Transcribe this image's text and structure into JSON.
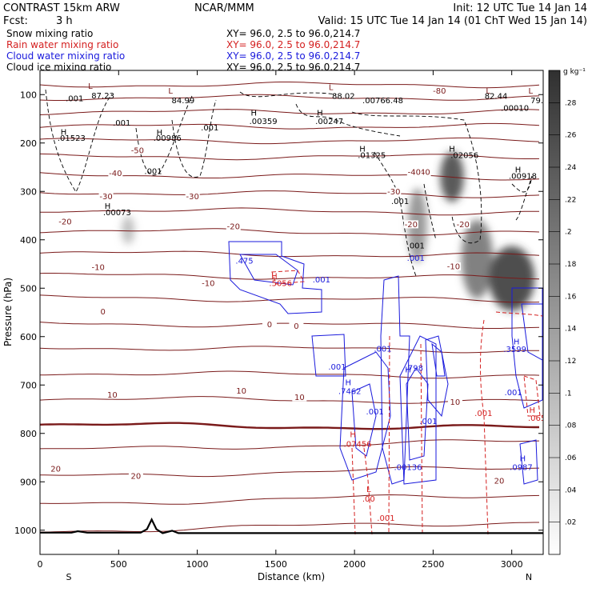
{
  "header": {
    "title_left": "CONTRAST 15km ARW",
    "title_center": "NCAR/MMM",
    "init": "Init: 12 UTC Tue 14 Jan 14",
    "fcst_label": "Fcst:",
    "fcst_value": "3 h",
    "valid": "Valid: 15 UTC Tue 14 Jan 14 (01 ChT Wed 15 Jan 14)"
  },
  "fields": [
    {
      "name": "Snow mixing ratio",
      "xy": "XY=  96.0,  2.5 to  96.0,214.7",
      "color": "#000000"
    },
    {
      "name": "Rain water mixing ratio",
      "xy": "XY=  96.0,  2.5 to  96.0,214.7",
      "color": "#d42020"
    },
    {
      "name": "Cloud water mixing ratio",
      "xy": "XY=  96.0,  2.5 to  96.0,214.7",
      "color": "#1a1adc"
    },
    {
      "name": "Cloud ice mixing ratio",
      "xy": "XY=  96.0,  2.5 to  96.0,214.7",
      "color": "#000000"
    }
  ],
  "chart_data": {
    "type": "heatmap",
    "xlabel": "Distance (km)",
    "ylabel": "Pressure (hPa)",
    "xlim": [
      0,
      3200
    ],
    "ylim": [
      1050,
      50
    ],
    "x_ticks": [
      0,
      500,
      1000,
      1500,
      2000,
      2500,
      3000
    ],
    "y_ticks": [
      100,
      200,
      300,
      400,
      500,
      600,
      700,
      800,
      900,
      1000
    ],
    "x_end_labels": {
      "left": "S",
      "right": "N"
    },
    "colorbar": {
      "unit": "g kg⁻¹",
      "ticks": [
        ".02",
        ".04",
        ".06",
        ".08",
        ".1",
        ".12",
        ".14",
        ".16",
        ".18",
        ".2",
        ".22",
        ".24",
        ".26",
        ".28"
      ],
      "range": [
        0,
        0.3
      ]
    },
    "shading_field": "Snow mixing ratio",
    "snow_blobs": [
      {
        "x": 560,
        "p": 380,
        "w": 40,
        "h": 45,
        "v": 0.1
      },
      {
        "x": 2400,
        "p": 370,
        "w": 80,
        "h": 140,
        "v": 0.16
      },
      {
        "x": 2620,
        "p": 270,
        "w": 110,
        "h": 90,
        "v": 0.26
      },
      {
        "x": 2780,
        "p": 440,
        "w": 160,
        "h": 150,
        "v": 0.2
      },
      {
        "x": 3000,
        "p": 480,
        "w": 250,
        "h": 120,
        "v": 0.28
      }
    ],
    "isotherm_labels": [
      {
        "t": "-80",
        "x": 2540,
        "p": 92
      },
      {
        "t": "-50",
        "x": 620,
        "p": 215
      },
      {
        "t": "-40",
        "x": 480,
        "p": 262
      },
      {
        "t": "-40",
        "x": 2440,
        "p": 260
      },
      {
        "t": "-40",
        "x": 2380,
        "p": 260
      },
      {
        "t": "-30",
        "x": 420,
        "p": 310
      },
      {
        "t": "-30",
        "x": 970,
        "p": 310
      },
      {
        "t": "-30",
        "x": 2250,
        "p": 300
      },
      {
        "t": "-20",
        "x": 160,
        "p": 362
      },
      {
        "t": "-20",
        "x": 1230,
        "p": 372
      },
      {
        "t": "-20",
        "x": 2360,
        "p": 368
      },
      {
        "t": "-20",
        "x": 2690,
        "p": 368
      },
      {
        "t": "-10",
        "x": 370,
        "p": 457
      },
      {
        "t": "-10",
        "x": 1070,
        "p": 490
      },
      {
        "t": "-10",
        "x": 2630,
        "p": 455
      },
      {
        "t": "0",
        "x": 400,
        "p": 548
      },
      {
        "t": "0",
        "x": 1460,
        "p": 575
      },
      {
        "t": "0",
        "x": 1630,
        "p": 578
      },
      {
        "t": "10",
        "x": 460,
        "p": 720
      },
      {
        "t": "10",
        "x": 1280,
        "p": 712
      },
      {
        "t": "10",
        "x": 1650,
        "p": 725
      },
      {
        "t": "10",
        "x": 2640,
        "p": 735
      },
      {
        "t": "20",
        "x": 100,
        "p": 873
      },
      {
        "t": "20",
        "x": 610,
        "p": 888
      },
      {
        "t": "20",
        "x": 2920,
        "p": 898
      }
    ],
    "extrema": [
      {
        "kind": "L",
        "x": 320,
        "p": 82,
        "color": "#7a1a1a"
      },
      {
        "kind": "L",
        "x": 830,
        "p": 92,
        "color": "#7a1a1a"
      },
      {
        "kind": "L",
        "x": 1850,
        "p": 85,
        "color": "#7a1a1a"
      },
      {
        "kind": "L",
        "x": 2850,
        "p": 92,
        "color": "#7a1a1a"
      },
      {
        "kind": "L",
        "x": 3120,
        "p": 92,
        "color": "#7a1a1a"
      },
      {
        "kind": "H",
        "x": 150,
        "p": 177,
        "color": "#000000"
      },
      {
        "kind": "H",
        "x": 760,
        "p": 178,
        "color": "#000000"
      },
      {
        "kind": "H",
        "x": 1360,
        "p": 138,
        "color": "#000000"
      },
      {
        "kind": "H",
        "x": 1780,
        "p": 138,
        "color": "#000000"
      },
      {
        "kind": "H",
        "x": 2050,
        "p": 212,
        "color": "#000000"
      },
      {
        "kind": "H",
        "x": 2620,
        "p": 212,
        "color": "#000000"
      },
      {
        "kind": "H",
        "x": 3040,
        "p": 255,
        "color": "#000000"
      },
      {
        "kind": "H",
        "x": 430,
        "p": 330,
        "color": "#000000"
      },
      {
        "kind": "H",
        "x": 1490,
        "p": 475,
        "color": "#d42020"
      },
      {
        "kind": "H",
        "x": 1960,
        "p": 695,
        "color": "#1a1adc"
      },
      {
        "kind": "H",
        "x": 2340,
        "p": 668,
        "color": "#1a1adc"
      },
      {
        "kind": "H",
        "x": 3030,
        "p": 610,
        "color": "#1a1adc"
      },
      {
        "kind": "H",
        "x": 3070,
        "p": 852,
        "color": "#1a1adc"
      },
      {
        "kind": "H",
        "x": 1990,
        "p": 802,
        "color": "#d42020"
      },
      {
        "kind": "H",
        "x": 3130,
        "p": 752,
        "color": "#d42020"
      },
      {
        "kind": "L",
        "x": 2090,
        "p": 915,
        "color": "#d42020"
      }
    ],
    "value_labels": [
      {
        "t": ".001",
        "x": 220,
        "p": 108,
        "color": "#000000"
      },
      {
        "t": "87.23",
        "x": 400,
        "p": 102,
        "color": "#000000"
      },
      {
        "t": "84.99",
        "x": 910,
        "p": 112,
        "color": "#000000"
      },
      {
        "t": "88.02",
        "x": 1930,
        "p": 103,
        "color": "#000000"
      },
      {
        "t": ".00766.48",
        "x": 2180,
        "p": 112,
        "color": "#000000"
      },
      {
        "t": "82.44",
        "x": 2900,
        "p": 103,
        "color": "#000000"
      },
      {
        "t": "79.",
        "x": 3160,
        "p": 112,
        "color": "#000000"
      },
      {
        "t": ".00010",
        "x": 3020,
        "p": 128,
        "color": "#000000"
      },
      {
        "t": ".001",
        "x": 520,
        "p": 158,
        "color": "#000000"
      },
      {
        "t": ".00359",
        "x": 1420,
        "p": 155,
        "color": "#000000"
      },
      {
        "t": ".00247",
        "x": 1840,
        "p": 155,
        "color": "#000000"
      },
      {
        "t": ".001",
        "x": 1080,
        "p": 168,
        "color": "#000000"
      },
      {
        "t": ".01523",
        "x": 200,
        "p": 190,
        "color": "#000000"
      },
      {
        "t": ".00986",
        "x": 810,
        "p": 190,
        "color": "#000000"
      },
      {
        "t": ".01325",
        "x": 2110,
        "p": 225,
        "color": "#000000"
      },
      {
        "t": ".02056",
        "x": 2700,
        "p": 225,
        "color": "#000000"
      },
      {
        "t": ".001",
        "x": 720,
        "p": 258,
        "color": "#000000"
      },
      {
        "t": ".00918",
        "x": 3070,
        "p": 268,
        "color": "#000000"
      },
      {
        "t": ".001",
        "x": 2290,
        "p": 320,
        "color": "#000000"
      },
      {
        "t": ".00073",
        "x": 490,
        "p": 343,
        "color": "#000000"
      },
      {
        "t": ".001",
        "x": 2390,
        "p": 412,
        "color": "#000000"
      },
      {
        "t": ".475",
        "x": 1300,
        "p": 443,
        "color": "#1a1adc"
      },
      {
        "t": ".001",
        "x": 2390,
        "p": 438,
        "color": "#1a1adc"
      },
      {
        "t": ".5056",
        "x": 1530,
        "p": 490,
        "color": "#d42020"
      },
      {
        "t": ".001",
        "x": 1790,
        "p": 482,
        "color": "#1a1adc"
      },
      {
        "t": ".001",
        "x": 2180,
        "p": 625,
        "color": "#1a1adc"
      },
      {
        "t": ".001",
        "x": 1890,
        "p": 662,
        "color": "#1a1adc"
      },
      {
        "t": ".798",
        "x": 2380,
        "p": 665,
        "color": "#1a1adc"
      },
      {
        "t": ".3599",
        "x": 3020,
        "p": 626,
        "color": "#1a1adc"
      },
      {
        "t": ".7462",
        "x": 1970,
        "p": 713,
        "color": "#1a1adc"
      },
      {
        "t": ".001",
        "x": 3010,
        "p": 715,
        "color": "#1a1adc"
      },
      {
        "t": ".001",
        "x": 2130,
        "p": 755,
        "color": "#1a1adc"
      },
      {
        "t": ".001",
        "x": 2470,
        "p": 775,
        "color": "#1a1adc"
      },
      {
        "t": ".001",
        "x": 2820,
        "p": 758,
        "color": "#d42020"
      },
      {
        "t": ".065",
        "x": 3160,
        "p": 768,
        "color": "#d42020"
      },
      {
        "t": ".07456",
        "x": 2020,
        "p": 822,
        "color": "#d42020"
      },
      {
        "t": ".00136",
        "x": 2340,
        "p": 870,
        "color": "#1a1adc"
      },
      {
        "t": ".0987",
        "x": 3060,
        "p": 870,
        "color": "#1a1adc"
      },
      {
        "t": ".00",
        "x": 2090,
        "p": 935,
        "color": "#d42020"
      },
      {
        "t": ".001",
        "x": 2200,
        "p": 975,
        "color": "#d42020"
      }
    ]
  }
}
